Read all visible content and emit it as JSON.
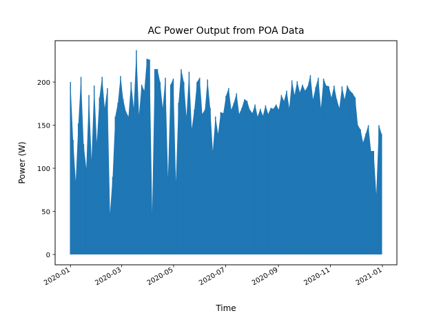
{
  "chart_data": {
    "type": "area",
    "title": "AC Power Output from POA Data",
    "xlabel": "Time",
    "ylabel": "Power (W)",
    "xlim": [
      "2019-12-14",
      "2021-01-18"
    ],
    "ylim": [
      -12,
      248
    ],
    "yticks": [
      0,
      50,
      100,
      150,
      200
    ],
    "xticks": [
      "2020-01",
      "2020-03",
      "2020-05",
      "2020-07",
      "2020-09",
      "2020-11",
      "2021-01"
    ],
    "grid": false,
    "legend": "none",
    "color": "#1f77b4",
    "series": [
      {
        "x_start": "2020-01-01",
        "x_end": "2020-12-31",
        "daily_peak": [
          200,
          133,
          85,
          152,
          206,
          128,
          100,
          185,
          110,
          196,
          130,
          182,
          206,
          170,
          193,
          48,
          90,
          160,
          176,
          207,
          180,
          166,
          160,
          200,
          170,
          237,
          162,
          197,
          190,
          227,
          226,
          50,
          215,
          215,
          200,
          170,
          205,
          90,
          197,
          204,
          85,
          176,
          215,
          200,
          160,
          212,
          146,
          168,
          200,
          205,
          163,
          168,
          203,
          170,
          120,
          160,
          140,
          165,
          164,
          184,
          193,
          168,
          176,
          187,
          163,
          170,
          180,
          178,
          168,
          164,
          174,
          160,
          169,
          161,
          173,
          163,
          170,
          169,
          174,
          168,
          185,
          178,
          190,
          170,
          202,
          185,
          201,
          188,
          197,
          190,
          195,
          208,
          180,
          194,
          205,
          170,
          204,
          196,
          195,
          182,
          196,
          180,
          170,
          195,
          180,
          196,
          190,
          187,
          182,
          150,
          145,
          130,
          140,
          150,
          120,
          120,
          70,
          150,
          140
        ]
      }
    ]
  }
}
